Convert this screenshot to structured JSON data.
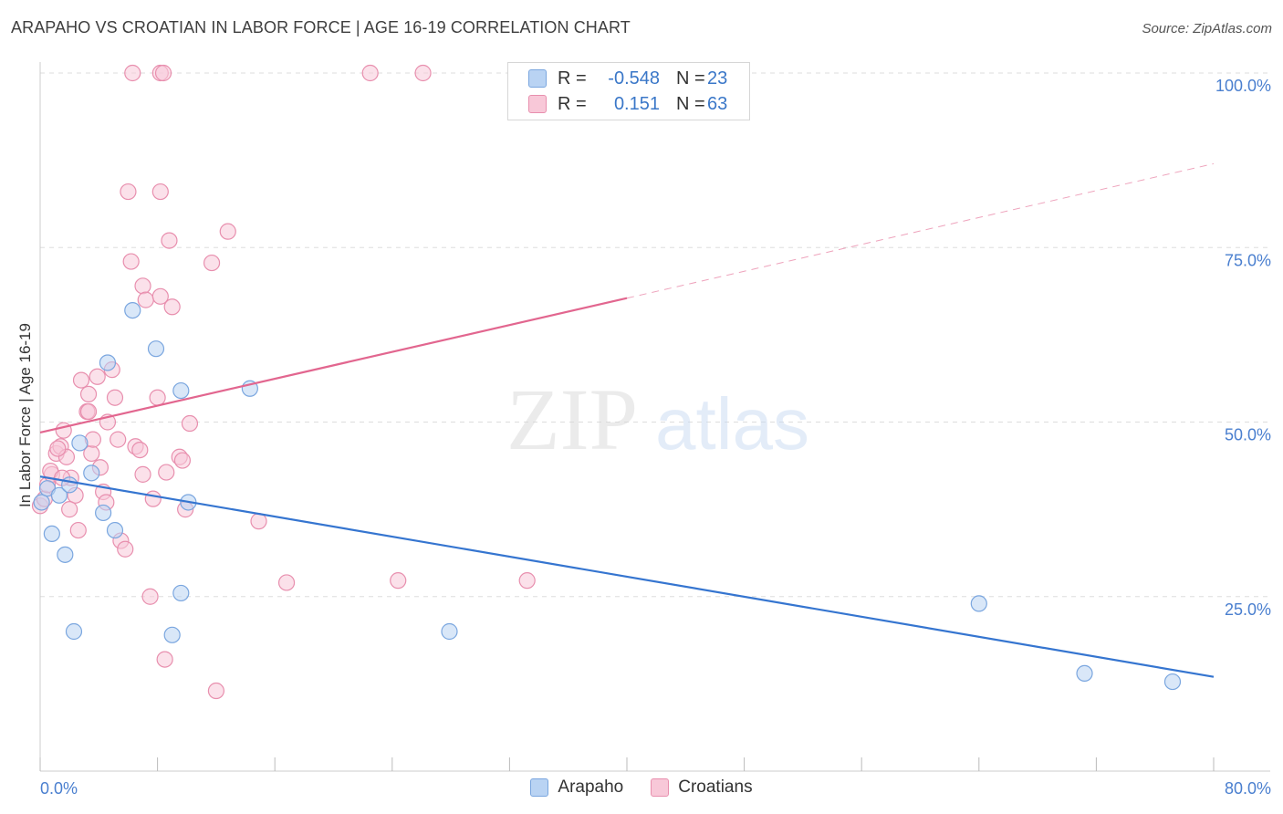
{
  "title": "ARAPAHO VS CROATIAN IN LABOR FORCE | AGE 16-19 CORRELATION CHART",
  "source": "Source: ZipAtlas.com",
  "watermark": {
    "zip": "ZIP",
    "atlas": "atlas"
  },
  "colors": {
    "arapaho_fill": "#b9d3f3",
    "arapaho_stroke": "#7aa6df",
    "arapaho_line": "#3575d0",
    "croatian_fill": "#f8c8d8",
    "croatian_stroke": "#e88fae",
    "croatian_line": "#e2668f",
    "tick_text": "#4a7fcf",
    "grid": "#dddddd"
  },
  "legend_top": {
    "rows": [
      {
        "series": "Arapaho",
        "r_label": "R =",
        "r_value": "-0.548",
        "n_label": "N =",
        "n_value": "23"
      },
      {
        "series": "Croatians",
        "r_label": "R =",
        "r_value": "0.151",
        "n_label": "N =",
        "n_value": "63"
      }
    ]
  },
  "legend_bottom": [
    "Arapaho",
    "Croatians"
  ],
  "chart_data": {
    "type": "scatter",
    "title": "ARAPAHO VS CROATIAN IN LABOR FORCE | AGE 16-19 CORRELATION CHART",
    "xlabel": "",
    "ylabel": "In Labor Force | Age 16-19",
    "xlim": [
      0,
      80
    ],
    "ylim": [
      0,
      103
    ],
    "x_tick_labels": [
      {
        "value": 0,
        "label": "0.0%"
      },
      {
        "value": 80,
        "label": "80.0%"
      }
    ],
    "x_minor_ticks": [
      0,
      8,
      16,
      24,
      32,
      40,
      48,
      56,
      64,
      72,
      80
    ],
    "y_ticks": [
      {
        "value": 25,
        "label": "25.0%"
      },
      {
        "value": 50,
        "label": "50.0%"
      },
      {
        "value": 75,
        "label": "75.0%"
      },
      {
        "value": 100,
        "label": "100.0%"
      }
    ],
    "grid": true,
    "series": [
      {
        "name": "Arapaho",
        "points": [
          [
            0.1,
            38.5
          ],
          [
            0.5,
            40.5
          ],
          [
            0.8,
            34
          ],
          [
            1.3,
            39.5
          ],
          [
            1.7,
            31
          ],
          [
            2.0,
            41
          ],
          [
            2.3,
            20
          ],
          [
            2.7,
            47
          ],
          [
            3.5,
            42.7
          ],
          [
            4.3,
            37
          ],
          [
            4.6,
            58.5
          ],
          [
            5.1,
            34.5
          ],
          [
            6.3,
            66
          ],
          [
            7.9,
            60.5
          ],
          [
            9.6,
            25.5
          ],
          [
            9.6,
            54.5
          ],
          [
            10.1,
            38.5
          ],
          [
            9.0,
            19.5
          ],
          [
            14.3,
            54.8
          ],
          [
            27.9,
            20
          ],
          [
            64.0,
            24
          ],
          [
            71.2,
            14
          ],
          [
            77.2,
            12.8
          ]
        ],
        "trend": {
          "x": [
            0,
            80
          ],
          "y": [
            42.2,
            13.5
          ],
          "dashed_after": null
        }
      },
      {
        "name": "Croatians",
        "points": [
          [
            0.0,
            38
          ],
          [
            0.3,
            39
          ],
          [
            0.5,
            41
          ],
          [
            0.8,
            42.5
          ],
          [
            1.1,
            45.5
          ],
          [
            1.4,
            46.5
          ],
          [
            1.6,
            48.8
          ],
          [
            1.8,
            45
          ],
          [
            2.1,
            42
          ],
          [
            2.4,
            39.5
          ],
          [
            2.6,
            34.5
          ],
          [
            2.8,
            56
          ],
          [
            3.2,
            51.5
          ],
          [
            3.3,
            54
          ],
          [
            3.5,
            45.5
          ],
          [
            3.6,
            47.5
          ],
          [
            3.9,
            56.5
          ],
          [
            4.1,
            43.5
          ],
          [
            4.3,
            40
          ],
          [
            4.6,
            50
          ],
          [
            4.9,
            57.5
          ],
          [
            5.1,
            53.5
          ],
          [
            5.3,
            47.5
          ],
          [
            5.5,
            33
          ],
          [
            5.8,
            31.8
          ],
          [
            6.0,
            83
          ],
          [
            6.2,
            73
          ],
          [
            6.5,
            46.5
          ],
          [
            6.8,
            46
          ],
          [
            7.0,
            69.5
          ],
          [
            7.2,
            67.5
          ],
          [
            7.5,
            25
          ],
          [
            7.7,
            39
          ],
          [
            8.0,
            53.5
          ],
          [
            8.2,
            68
          ],
          [
            8.2,
            83
          ],
          [
            8.5,
            16
          ],
          [
            8.6,
            42.8
          ],
          [
            8.8,
            76
          ],
          [
            9.0,
            66.5
          ],
          [
            9.5,
            45
          ],
          [
            9.7,
            44.5
          ],
          [
            9.9,
            37.5
          ],
          [
            10.2,
            49.8
          ],
          [
            11.7,
            72.8
          ],
          [
            12.0,
            11.5
          ],
          [
            12.8,
            77.3
          ],
          [
            14.9,
            35.8
          ],
          [
            16.8,
            27
          ],
          [
            24.4,
            27.3
          ],
          [
            33.2,
            27.3
          ],
          [
            6.3,
            100
          ],
          [
            8.2,
            100
          ],
          [
            8.4,
            100
          ],
          [
            22.5,
            100
          ],
          [
            26.1,
            100
          ],
          [
            1.2,
            46.2
          ],
          [
            0.7,
            43
          ],
          [
            2.0,
            37.5
          ],
          [
            4.5,
            38.5
          ],
          [
            3.3,
            51.5
          ],
          [
            7.0,
            42.5
          ],
          [
            1.5,
            42
          ]
        ],
        "trend": {
          "x": [
            0,
            80
          ],
          "y": [
            48.5,
            87
          ],
          "solid_until_x": 40
        }
      }
    ]
  }
}
